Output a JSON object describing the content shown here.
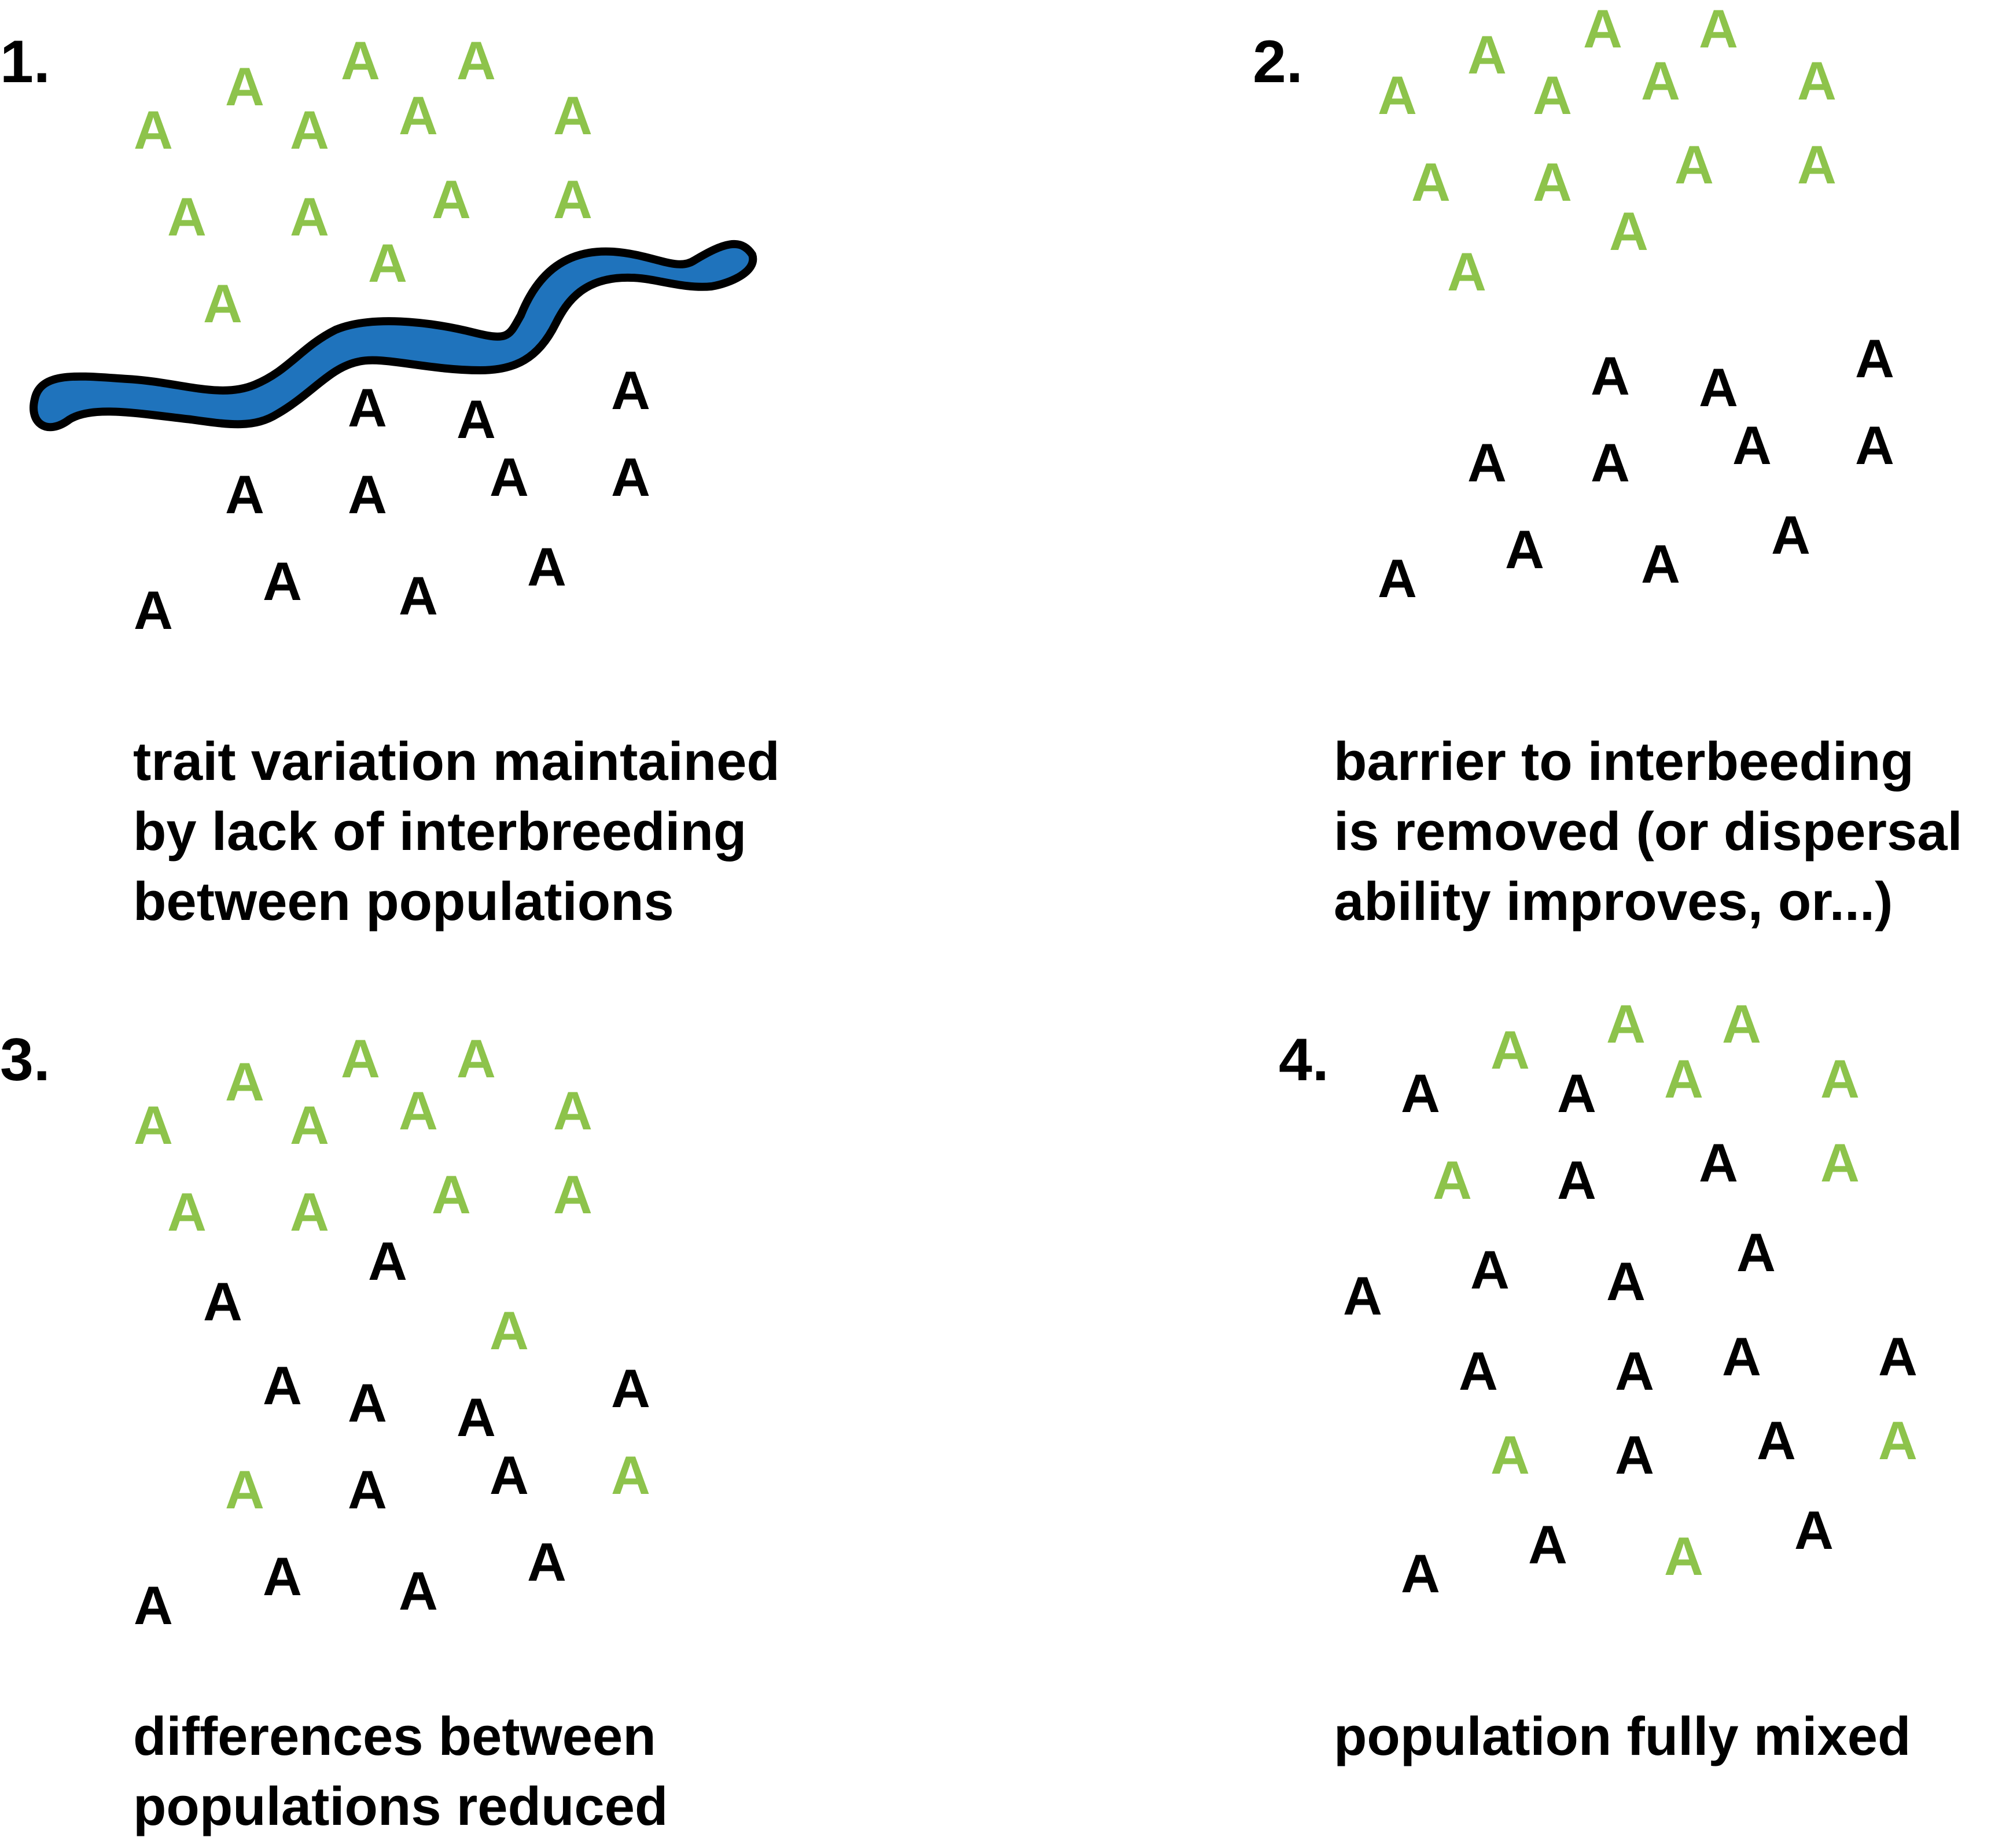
{
  "colors": {
    "green": "#8dc34b",
    "black": "#000000",
    "river_fill": "#1f73bc",
    "river_outline": "#000000"
  },
  "letter": "A",
  "panels": [
    {
      "number": "1.",
      "caption": [
        "trait variation maintained",
        "by lack of interbreeding",
        "between populations"
      ],
      "has_river": true,
      "green": [
        [
          265,
          225
        ],
        [
          423,
          150
        ],
        [
          623,
          105
        ],
        [
          823,
          105
        ],
        [
          535,
          225
        ],
        [
          723,
          200
        ],
        [
          990,
          200
        ],
        [
          323,
          375
        ],
        [
          535,
          375
        ],
        [
          780,
          345
        ],
        [
          990,
          345
        ],
        [
          670,
          455
        ],
        [
          385,
          525
        ]
      ],
      "black": [
        [
          635,
          705
        ],
        [
          823,
          725
        ],
        [
          1090,
          675
        ],
        [
          423,
          855
        ],
        [
          635,
          855
        ],
        [
          880,
          825
        ],
        [
          1090,
          825
        ],
        [
          488,
          1005
        ],
        [
          723,
          1030
        ],
        [
          945,
          980
        ],
        [
          265,
          1055
        ]
      ]
    },
    {
      "number": "2.",
      "caption": [
        "barrier to interbeeding",
        "is removed (or dispersal",
        "ability improves, or...)"
      ],
      "has_river": false,
      "green": [
        [
          2415,
          165
        ],
        [
          2570,
          95
        ],
        [
          2770,
          50
        ],
        [
          2970,
          50
        ],
        [
          2683,
          165
        ],
        [
          2870,
          140
        ],
        [
          3140,
          140
        ],
        [
          2473,
          315
        ],
        [
          2683,
          315
        ],
        [
          2928,
          285
        ],
        [
          3140,
          285
        ],
        [
          2815,
          400
        ],
        [
          2535,
          470
        ]
      ],
      "black": [
        [
          2783,
          650
        ],
        [
          2970,
          670
        ],
        [
          3240,
          620
        ],
        [
          2570,
          800
        ],
        [
          2783,
          800
        ],
        [
          3028,
          770
        ],
        [
          3240,
          770
        ],
        [
          2635,
          950
        ],
        [
          2870,
          975
        ],
        [
          3095,
          925
        ],
        [
          2415,
          1000
        ]
      ]
    },
    {
      "number": "3.",
      "caption": [
        "differences between",
        "populations reduced"
      ],
      "has_river": false,
      "green": [
        [
          265,
          1945
        ],
        [
          423,
          1870
        ],
        [
          623,
          1830
        ],
        [
          823,
          1830
        ],
        [
          535,
          1945
        ],
        [
          723,
          1920
        ],
        [
          990,
          1920
        ],
        [
          323,
          2095
        ],
        [
          535,
          2095
        ],
        [
          780,
          2065
        ],
        [
          990,
          2065
        ],
        [
          880,
          2300
        ],
        [
          423,
          2575
        ],
        [
          1090,
          2550
        ]
      ],
      "black": [
        [
          670,
          2180
        ],
        [
          385,
          2250
        ],
        [
          488,
          2395
        ],
        [
          635,
          2425
        ],
        [
          823,
          2450
        ],
        [
          1090,
          2400
        ],
        [
          635,
          2575
        ],
        [
          880,
          2550
        ],
        [
          488,
          2725
        ],
        [
          723,
          2750
        ],
        [
          945,
          2700
        ],
        [
          265,
          2775
        ]
      ]
    },
    {
      "number": "4.",
      "caption": [
        "population fully mixed"
      ],
      "has_river": false,
      "green": [
        [
          2610,
          1815
        ],
        [
          2810,
          1770
        ],
        [
          3010,
          1770
        ],
        [
          2910,
          1865
        ],
        [
          3180,
          1865
        ],
        [
          2510,
          2040
        ],
        [
          3180,
          2010
        ],
        [
          2610,
          2515
        ],
        [
          3280,
          2490
        ],
        [
          2910,
          2690
        ]
      ],
      "black": [
        [
          2455,
          1890
        ],
        [
          2725,
          1890
        ],
        [
          2725,
          2040
        ],
        [
          2970,
          2010
        ],
        [
          2355,
          2240
        ],
        [
          2575,
          2195
        ],
        [
          2810,
          2215
        ],
        [
          3035,
          2165
        ],
        [
          2555,
          2370
        ],
        [
          2825,
          2370
        ],
        [
          3010,
          2345
        ],
        [
          3280,
          2345
        ],
        [
          2825,
          2515
        ],
        [
          3070,
          2490
        ],
        [
          2455,
          2720
        ],
        [
          2675,
          2670
        ],
        [
          3135,
          2645
        ]
      ]
    }
  ]
}
